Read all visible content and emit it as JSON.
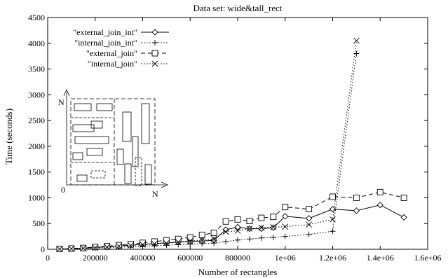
{
  "chart_data": {
    "type": "line",
    "title": "Data set: wide&tall_rect",
    "xlabel": "Number of rectangles",
    "ylabel": "Time (seconds)",
    "xlim": [
      0,
      1600000
    ],
    "ylim": [
      0,
      4500
    ],
    "x_ticks": [
      0,
      200000,
      400000,
      600000,
      800000,
      1000000,
      1200000,
      1400000,
      1600000
    ],
    "x_tick_labels": [
      "0",
      "200000",
      "400000",
      "600000",
      "800000",
      "1e+06",
      "1.2e+06",
      "1.4e+06",
      "1.6e+06"
    ],
    "y_ticks": [
      0,
      500,
      1000,
      1500,
      2000,
      2500,
      3000,
      3500,
      4000,
      4500
    ],
    "y_tick_labels": [
      "0",
      "500",
      "1000",
      "1500",
      "2000",
      "2500",
      "3000",
      "3500",
      "4000",
      "4500"
    ],
    "grid": false,
    "legend_position": "top-left",
    "series": [
      {
        "name": "\"external_join_int\"",
        "line": "solid",
        "marker": "diamond",
        "x": [
          50000,
          100000,
          150000,
          200000,
          250000,
          300000,
          350000,
          400000,
          450000,
          500000,
          550000,
          600000,
          650000,
          700000,
          750000,
          800000,
          850000,
          900000,
          950000,
          1000000,
          1100000,
          1200000,
          1300000,
          1400000,
          1500000
        ],
        "y": [
          5,
          10,
          20,
          35,
          50,
          65,
          80,
          95,
          110,
          125,
          140,
          150,
          160,
          175,
          380,
          430,
          400,
          400,
          420,
          640,
          600,
          780,
          750,
          860,
          620
        ]
      },
      {
        "name": "\"internal_join_int\"",
        "line": "dotted",
        "marker": "plus",
        "x": [
          50000,
          100000,
          150000,
          200000,
          250000,
          300000,
          350000,
          400000,
          450000,
          500000,
          550000,
          600000,
          650000,
          700000,
          750000,
          800000,
          850000,
          900000,
          950000,
          1000000,
          1100000,
          1200000,
          1300000
        ],
        "y": [
          5,
          10,
          15,
          20,
          30,
          40,
          50,
          60,
          70,
          80,
          90,
          100,
          110,
          120,
          150,
          180,
          200,
          220,
          230,
          250,
          290,
          350,
          3800
        ]
      },
      {
        "name": "\"external_join\"",
        "line": "dashed",
        "marker": "square",
        "x": [
          50000,
          100000,
          150000,
          200000,
          250000,
          300000,
          350000,
          400000,
          450000,
          500000,
          550000,
          600000,
          650000,
          700000,
          750000,
          800000,
          850000,
          900000,
          950000,
          1000000,
          1100000,
          1200000,
          1300000,
          1400000,
          1500000
        ],
        "y": [
          8,
          15,
          25,
          45,
          60,
          80,
          100,
          125,
          150,
          175,
          200,
          230,
          280,
          320,
          540,
          580,
          550,
          610,
          630,
          820,
          780,
          1020,
          1000,
          1110,
          1000
        ]
      },
      {
        "name": "\"internal_join\"",
        "line": "dotted",
        "marker": "cross",
        "x": [
          50000,
          100000,
          150000,
          200000,
          250000,
          300000,
          350000,
          400000,
          450000,
          500000,
          550000,
          600000,
          650000,
          700000,
          750000,
          800000,
          850000,
          900000,
          950000,
          1000000,
          1100000,
          1200000,
          1300000
        ],
        "y": [
          5,
          10,
          20,
          30,
          45,
          60,
          75,
          90,
          105,
          120,
          140,
          160,
          180,
          200,
          340,
          360,
          400,
          420,
          430,
          440,
          480,
          580,
          4050
        ]
      }
    ],
    "inset": {
      "x_axis_label": "N",
      "y_axis_label": "N",
      "origin_label": "0"
    }
  }
}
